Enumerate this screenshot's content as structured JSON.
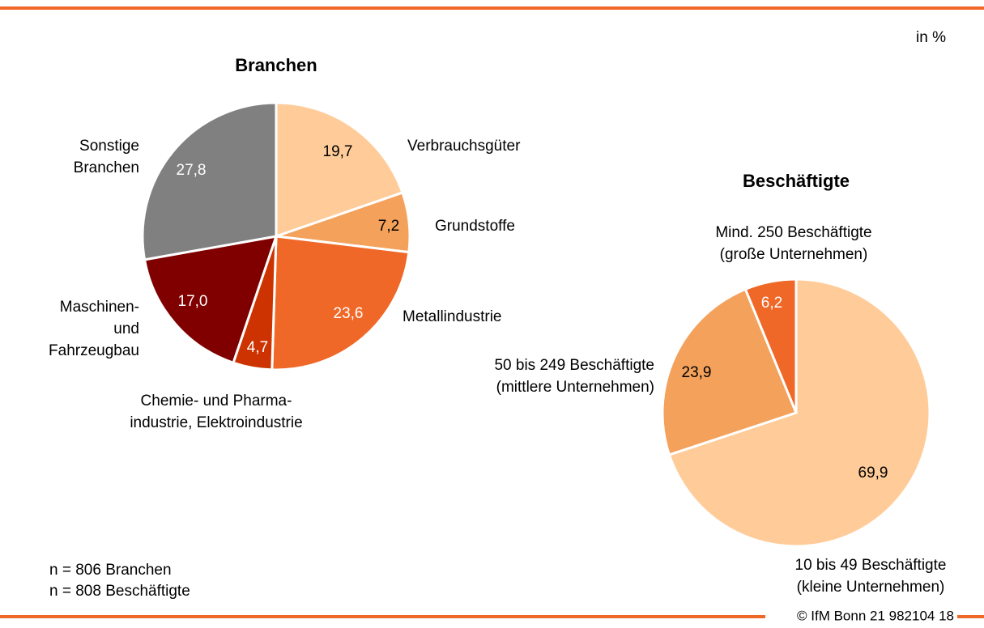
{
  "unit_note": "in %",
  "notes": [
    "n = 806 Branchen",
    "n = 808 Beschäftigte"
  ],
  "copyright": "© IfM Bonn 21 982104 18",
  "chart_data": [
    {
      "type": "pie",
      "title": "Branchen",
      "categories": [
        [
          "Verbrauchsgüter"
        ],
        [
          "Grundstoffe"
        ],
        [
          "Metallindustrie"
        ],
        [
          "Chemie- und Pharma-",
          "industrie, Elektroindustrie"
        ],
        [
          "Maschinen-",
          "und",
          "Fahrzeugbau"
        ],
        [
          "Sonstige",
          "Branchen"
        ]
      ],
      "values": [
        19.7,
        7.2,
        23.6,
        4.7,
        17.0,
        27.8
      ],
      "value_labels": [
        "19,7",
        "7,2",
        "23,6",
        "4,7",
        "17,0",
        "27,8"
      ],
      "colors": [
        "#ffcc99",
        "#f3a15b",
        "#f06828",
        "#cc3300",
        "#800000",
        "#808080"
      ]
    },
    {
      "type": "pie",
      "title": "Beschäftigte",
      "categories": [
        [
          "10 bis 49 Beschäftigte",
          "(kleine Unternehmen)"
        ],
        [
          "50 bis 249 Beschäftigte",
          "(mittlere Unternehmen)"
        ],
        [
          "Mind. 250 Beschäftigte",
          "(große Unternehmen)"
        ]
      ],
      "values": [
        69.9,
        23.9,
        6.2
      ],
      "value_labels": [
        "69,9",
        "23,9",
        "6,2"
      ],
      "colors": [
        "#ffcc99",
        "#f3a15b",
        "#f06828"
      ]
    }
  ]
}
